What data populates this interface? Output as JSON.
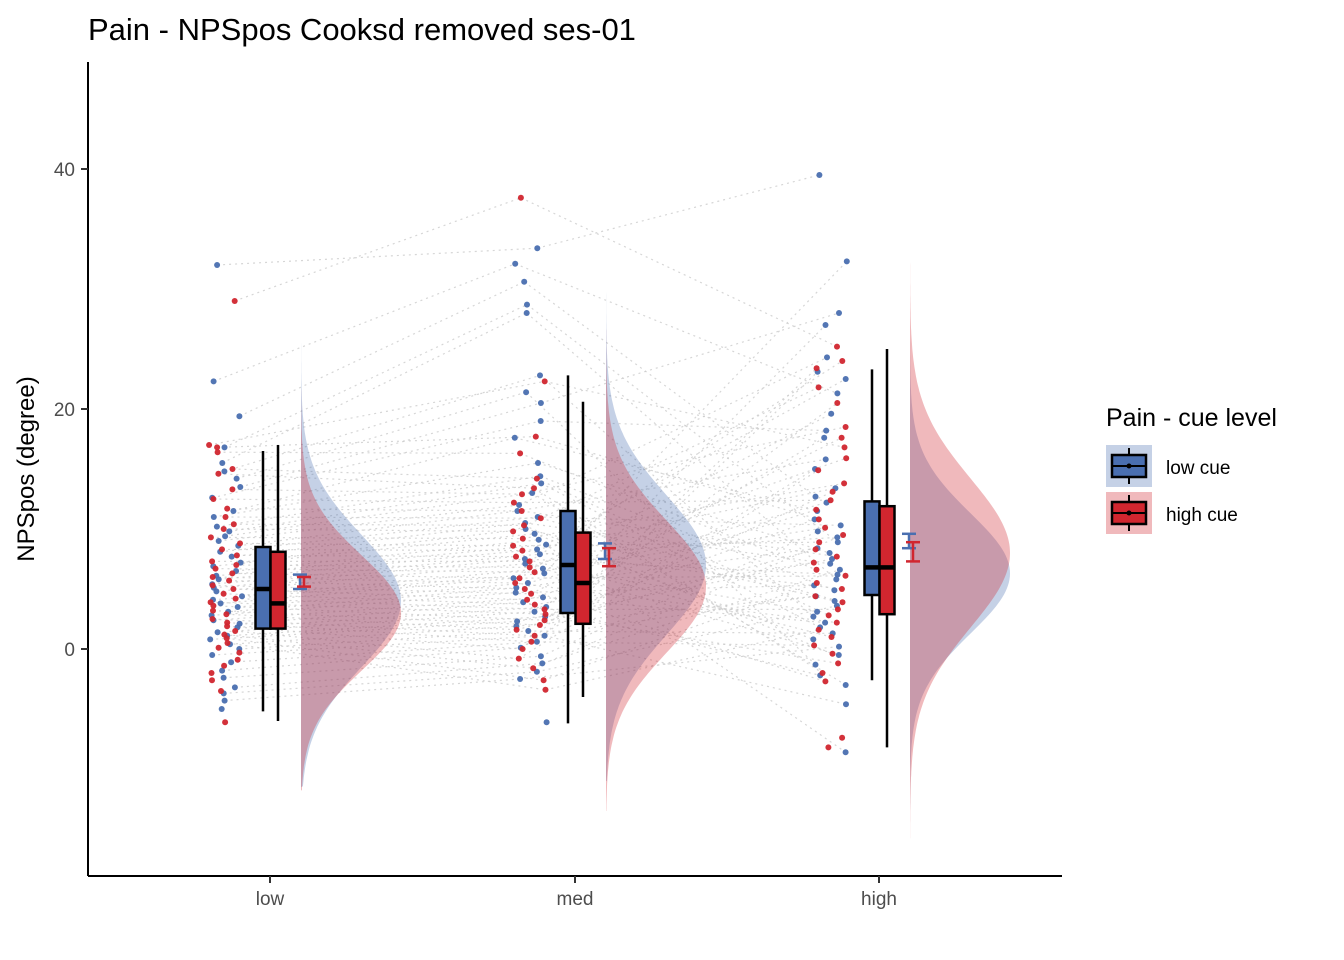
{
  "chart_data": {
    "type": "raincloud",
    "title": "Pain  - NPSpos Cooksd removed  ses-01",
    "ylabel": "NPSpos (degree)",
    "xlabel": "",
    "ylim": [
      -18.5,
      48
    ],
    "yticks": [
      0,
      20,
      40
    ],
    "grid": false,
    "legend_position": "right",
    "legend_title": "Pain  - cue level",
    "colors": {
      "low_cue": "#4a6fb0",
      "high_cue": "#d1262f",
      "lines": "#cccccc"
    },
    "categories": [
      "low",
      "med",
      "high"
    ],
    "series": [
      {
        "name": "low cue",
        "box": [
          {
            "category": "low",
            "whisker_low": -5.2,
            "q1": 1.7,
            "median": 5.0,
            "q3": 8.5,
            "whisker_high": 16.5
          },
          {
            "category": "med",
            "whisker_low": -6.2,
            "q1": 3.0,
            "median": 7.0,
            "q3": 11.5,
            "whisker_high": 22.8
          },
          {
            "category": "high",
            "whisker_low": -2.6,
            "q1": 4.5,
            "median": 6.8,
            "q3": 12.3,
            "whisker_high": 23.3
          }
        ],
        "mean_se": [
          {
            "category": "low",
            "mean": 5.6,
            "lower": 5.0,
            "upper": 6.2
          },
          {
            "category": "med",
            "mean": 8.2,
            "lower": 7.5,
            "upper": 8.8
          },
          {
            "category": "high",
            "mean": 9.0,
            "lower": 8.4,
            "upper": 9.6
          }
        ],
        "density": [
          {
            "category": "low",
            "mode": 4.0,
            "sd": 5.5,
            "max": 37.8,
            "min": -11.5
          },
          {
            "category": "med",
            "mode": 7.0,
            "sd": 5.8,
            "max": 44.0,
            "min": -11.0
          },
          {
            "category": "high",
            "mode": 6.3,
            "sd": 5.0,
            "max": 46.3,
            "min": -16.0
          }
        ]
      },
      {
        "name": "high cue",
        "box": [
          {
            "category": "low",
            "whisker_low": -6.0,
            "q1": 1.7,
            "median": 3.8,
            "q3": 8.1,
            "whisker_high": 17.0
          },
          {
            "category": "med",
            "whisker_low": -4.0,
            "q1": 2.1,
            "median": 5.5,
            "q3": 9.7,
            "whisker_high": 20.6
          },
          {
            "category": "high",
            "whisker_low": -8.2,
            "q1": 2.9,
            "median": 6.8,
            "q3": 11.9,
            "whisker_high": 25.0
          }
        ],
        "mean_se": [
          {
            "category": "low",
            "mean": 5.6,
            "lower": 5.2,
            "upper": 6.0
          },
          {
            "category": "med",
            "mean": 7.7,
            "lower": 6.9,
            "upper": 8.4
          },
          {
            "category": "high",
            "mean": 8.2,
            "lower": 7.3,
            "upper": 8.9
          }
        ],
        "density": [
          {
            "category": "low",
            "mode": 3.0,
            "sd": 4.8,
            "max": 37.0,
            "min": -11.8
          },
          {
            "category": "med",
            "mode": 5.2,
            "sd": 5.5,
            "max": 43.0,
            "min": -13.5
          },
          {
            "category": "high",
            "mode": 8.0,
            "sd": 6.2,
            "max": 45.0,
            "min": -15.8
          }
        ]
      }
    ],
    "points": {
      "low": {
        "low cue": [
          32.0,
          22.3,
          19.4,
          16.8,
          15.5,
          14.8,
          14.2,
          13.5,
          12.6,
          11.5,
          11.0,
          10.2,
          9.8,
          9.4,
          9.0,
          8.6,
          8.1,
          7.7,
          7.2,
          6.9,
          6.5,
          6.1,
          5.8,
          5.4,
          5.1,
          4.8,
          4.4,
          4.1,
          3.8,
          3.5,
          3.1,
          2.8,
          2.4,
          2.1,
          1.8,
          1.4,
          1.1,
          0.8,
          0.4,
          0.0,
          -0.5,
          -1.1,
          -1.8,
          -2.4,
          -3.2,
          -3.7,
          -4.3,
          -5.0
        ],
        "high cue": [
          29.0,
          17.0,
          16.8,
          16.4,
          15.0,
          14.6,
          13.3,
          12.5,
          11.7,
          11.0,
          10.4,
          10.0,
          9.3,
          8.8,
          8.3,
          7.8,
          7.3,
          7.0,
          6.7,
          6.3,
          6.0,
          5.7,
          5.3,
          5.0,
          4.6,
          4.2,
          3.9,
          3.6,
          3.2,
          2.9,
          2.5,
          2.2,
          1.9,
          1.5,
          1.2,
          0.9,
          0.5,
          0.1,
          -0.3,
          -0.9,
          -1.4,
          -2.0,
          -2.6,
          -3.5,
          -6.1
        ]
      },
      "med": {
        "low cue": [
          33.4,
          32.1,
          30.6,
          28.7,
          28.0,
          22.8,
          21.4,
          20.5,
          19.0,
          17.6,
          15.5,
          14.4,
          13.8,
          13.0,
          12.0,
          11.5,
          11.0,
          10.5,
          10.0,
          9.6,
          9.1,
          8.7,
          8.3,
          7.9,
          7.5,
          7.1,
          6.7,
          6.3,
          5.9,
          5.5,
          5.1,
          4.7,
          4.3,
          3.9,
          3.5,
          3.1,
          2.7,
          2.3,
          1.9,
          1.5,
          1.1,
          0.6,
          0.1,
          -0.6,
          -1.2,
          -1.9,
          -2.5,
          -6.1
        ],
        "high cue": [
          37.6,
          22.3,
          17.7,
          16.3,
          14.2,
          13.4,
          12.9,
          12.2,
          11.5,
          10.9,
          10.3,
          9.8,
          9.2,
          8.6,
          8.2,
          7.7,
          7.3,
          6.8,
          6.4,
          5.9,
          5.5,
          5.0,
          4.6,
          4.1,
          3.7,
          3.3,
          2.9,
          2.4,
          2.0,
          1.6,
          1.1,
          0.6,
          0.0,
          -0.8,
          -1.6,
          -2.6,
          -3.4
        ]
      },
      "high": {
        "low cue": [
          39.5,
          32.3,
          28.0,
          27.0,
          24.3,
          23.1,
          22.5,
          21.3,
          19.6,
          18.2,
          17.6,
          15.8,
          15.0,
          13.4,
          12.7,
          12.2,
          11.5,
          10.8,
          10.3,
          9.8,
          9.3,
          8.9,
          8.4,
          8.0,
          7.5,
          7.1,
          6.6,
          6.2,
          5.8,
          5.3,
          4.9,
          4.4,
          4.0,
          3.6,
          3.1,
          2.7,
          2.2,
          1.8,
          1.3,
          0.8,
          0.2,
          -0.5,
          -1.3,
          -2.2,
          -3.0,
          -4.6,
          -8.6
        ],
        "high cue": [
          25.2,
          24.0,
          23.4,
          21.8,
          20.5,
          18.5,
          17.6,
          16.8,
          15.9,
          14.9,
          13.8,
          13.1,
          12.4,
          11.6,
          10.8,
          10.1,
          9.5,
          8.9,
          8.3,
          7.7,
          7.2,
          6.6,
          6.1,
          5.5,
          5.0,
          4.4,
          3.9,
          3.3,
          2.8,
          2.2,
          1.6,
          1.0,
          0.3,
          -0.4,
          -1.2,
          -2.0,
          -2.7,
          -8.2,
          -7.4
        ]
      }
    }
  }
}
